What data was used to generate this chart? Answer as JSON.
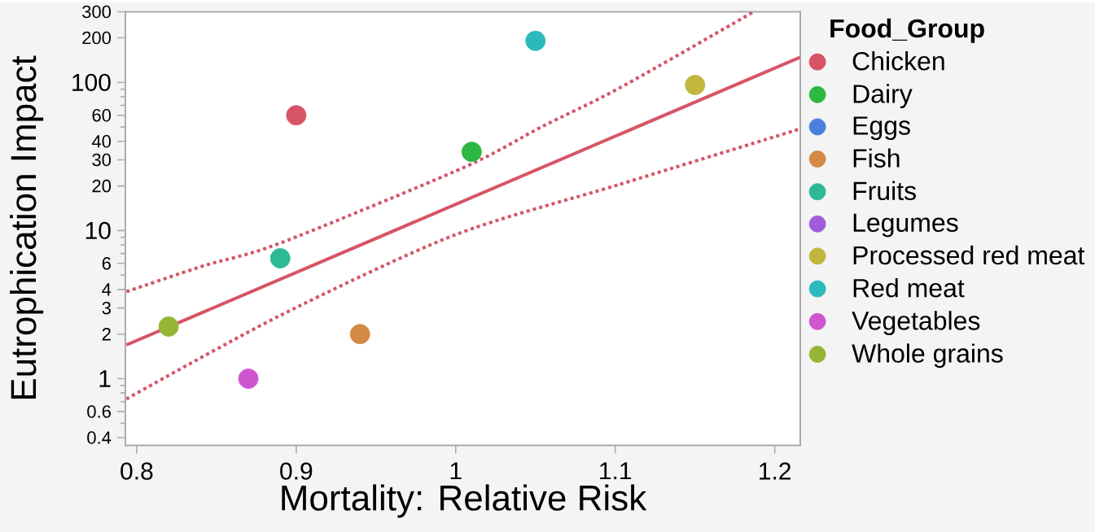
{
  "chart_data": {
    "type": "scatter",
    "xlabel": "Mortality: Relative Risk",
    "ylabel": "Eutrophication Impact",
    "legend_title": "Food_Group",
    "log": "y",
    "marker": "circle",
    "grid": false,
    "legend": "right",
    "xlim": [
      0.7929,
      1.216
    ],
    "ylim": [
      0.355,
      300
    ],
    "xticks": [
      0.8,
      0.9,
      1,
      1.1,
      1.2
    ],
    "yticks": [
      0.4,
      {
        "value": 0.5,
        "label": null
      },
      0.6,
      {
        "value": 0.7,
        "label": null
      },
      {
        "value": 0.8,
        "label": null
      },
      {
        "value": 0.9,
        "label": null
      },
      1,
      2,
      3,
      4,
      {
        "value": 5,
        "label": null
      },
      6,
      {
        "value": 7,
        "label": null
      },
      {
        "value": 8,
        "label": null
      },
      {
        "value": 9,
        "label": null
      },
      10,
      20,
      30,
      40,
      {
        "value": 50,
        "label": null
      },
      60,
      {
        "value": 70,
        "label": null
      },
      {
        "value": 80,
        "label": null
      },
      {
        "value": 90,
        "label": null
      },
      100,
      200,
      300
    ],
    "series": [
      {
        "name": "Chicken",
        "color": "#d75466",
        "x": [
          0.9
        ],
        "values": [
          60
        ]
      },
      {
        "name": "Dairy",
        "color": "#2db842",
        "x": [
          1.01
        ],
        "values": [
          34
        ]
      },
      {
        "name": "Eggs",
        "color": "#4a7fdc"
      },
      {
        "name": "Fish",
        "color": "#d38a45",
        "x": [
          0.94
        ],
        "values": [
          2
        ]
      },
      {
        "name": "Fruits",
        "color": "#2db994",
        "x": [
          0.89
        ],
        "values": [
          6.5
        ]
      },
      {
        "name": "Legumes",
        "color": "#9f5ddc"
      },
      {
        "name": "Processed red meat",
        "color": "#c2b63e",
        "x": [
          1.15
        ],
        "values": [
          96
        ]
      },
      {
        "name": "Red meat",
        "color": "#2cb9bc",
        "x": [
          1.05
        ],
        "values": [
          191
        ]
      },
      {
        "name": "Vegetables",
        "color": "#cf55cf",
        "x": [
          0.87
        ],
        "values": [
          1
        ]
      },
      {
        "name": "Whole grains",
        "color": "#96b535",
        "x": [
          0.82
        ],
        "values": [
          2.25
        ]
      },
      {
        "type": "line",
        "color": "#d75466",
        "line_style": "solid",
        "marker": "none",
        "x": [
          0.7936,
          1.2157
        ],
        "values": [
          1.69,
          147.6
        ]
      },
      {
        "type": "line",
        "color": "#d75466",
        "line_style": "dotted",
        "marker": "none",
        "x": [
          0.7936,
          0.8424,
          0.8896,
          1.0052,
          1.0536,
          1.1021,
          1.1859
        ],
        "values": [
          3.87,
          5.8,
          8.2,
          26.7,
          50,
          91,
          296
        ]
      },
      {
        "type": "line",
        "color": "#d75466",
        "line_style": "dotted",
        "marker": "none",
        "x": [
          0.7936,
          0.8896,
          0.999,
          1.1021,
          1.2157
        ],
        "values": [
          0.73,
          2.66,
          9.3,
          20.4,
          48.5
        ]
      }
    ]
  }
}
